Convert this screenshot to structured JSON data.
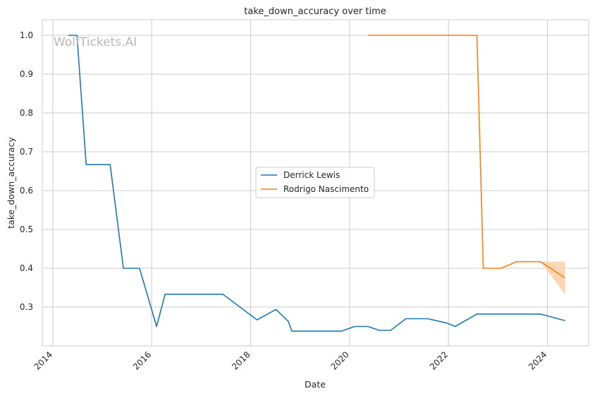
{
  "chart_data": {
    "type": "line",
    "title": "take_down_accuracy over time",
    "xlabel": "Date",
    "ylabel": "take_down_accuracy",
    "watermark": "WolfTickets.AI",
    "grid": true,
    "legend_position": "center",
    "xlim": [
      "2013-10-15",
      "2024-11-01"
    ],
    "ylim": [
      0.2,
      1.04
    ],
    "x_ticks": [
      "2014",
      "2016",
      "2018",
      "2020",
      "2022",
      "2024"
    ],
    "y_ticks": [
      "0.3",
      "0.4",
      "0.5",
      "0.6",
      "0.7",
      "0.8",
      "0.9",
      "1.0"
    ],
    "series": [
      {
        "name": "Derrick Lewis",
        "color": "#1f77b4",
        "points": [
          [
            "2014-04-26",
            1.0
          ],
          [
            "2014-06-28",
            1.0
          ],
          [
            "2014-09-04",
            0.667
          ],
          [
            "2015-02-28",
            0.667
          ],
          [
            "2015-06-06",
            0.4
          ],
          [
            "2015-10-03",
            0.4
          ],
          [
            "2016-02-06",
            0.25
          ],
          [
            "2016-04-09",
            0.333
          ],
          [
            "2017-06-10",
            0.333
          ],
          [
            "2018-02-17",
            0.267
          ],
          [
            "2018-07-07",
            0.294
          ],
          [
            "2018-10-06",
            0.263
          ],
          [
            "2018-11-01",
            0.238
          ],
          [
            "2019-11-02",
            0.238
          ],
          [
            "2020-02-08",
            0.25
          ],
          [
            "2020-05-16",
            0.25
          ],
          [
            "2020-08-08",
            0.24
          ],
          [
            "2020-10-31",
            0.24
          ],
          [
            "2021-02-20",
            0.27
          ],
          [
            "2021-07-31",
            0.27
          ],
          [
            "2021-12-18",
            0.259
          ],
          [
            "2022-02-19",
            0.25
          ],
          [
            "2022-07-30",
            0.282
          ],
          [
            "2023-11-11",
            0.282
          ],
          [
            "2024-05-11",
            0.265
          ]
        ]
      },
      {
        "name": "Rodrigo Nascimento",
        "color": "#ff7f0e",
        "band_color": "#f9cfa8",
        "points": [
          [
            "2020-05-16",
            1.0
          ],
          [
            "2022-07-30",
            1.0
          ],
          [
            "2022-09-15",
            0.4
          ],
          [
            "2023-01-25",
            0.4
          ],
          [
            "2023-05-20",
            0.417
          ],
          [
            "2023-11-11",
            0.417
          ],
          [
            "2024-05-11",
            0.375
          ]
        ],
        "band": [
          [
            "2023-11-11",
            0.417,
            0.417
          ],
          [
            "2024-05-11",
            0.333,
            0.417
          ]
        ]
      }
    ]
  }
}
